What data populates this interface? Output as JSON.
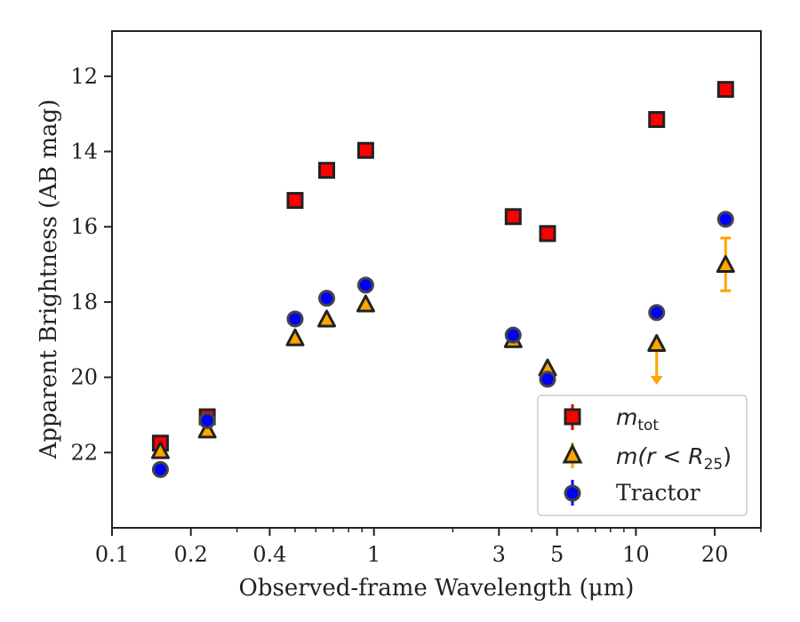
{
  "chart_data": {
    "type": "scatter",
    "xlabel": "Observed-frame Wavelength (μm)",
    "ylabel": "Apparent Brightness (AB mag)",
    "xscale": "log",
    "xlim": [
      0.1,
      30
    ],
    "ylim": [
      24,
      10.8
    ],
    "y_inverted": true,
    "x_ticks": [
      {
        "value": 0.1,
        "label": "0.1"
      },
      {
        "value": 0.2,
        "label": "0.2"
      },
      {
        "value": 0.4,
        "label": "0.4"
      },
      {
        "value": 1,
        "label": "1"
      },
      {
        "value": 3,
        "label": "3"
      },
      {
        "value": 5,
        "label": "5"
      },
      {
        "value": 10,
        "label": "10"
      },
      {
        "value": 20,
        "label": "20"
      }
    ],
    "y_ticks": [
      {
        "value": 12,
        "label": "12"
      },
      {
        "value": 14,
        "label": "14"
      },
      {
        "value": 16,
        "label": "16"
      },
      {
        "value": 18,
        "label": "18"
      },
      {
        "value": 20,
        "label": "20"
      },
      {
        "value": 22,
        "label": "22"
      }
    ],
    "grid": false,
    "legend_position": "bottom-right",
    "series": [
      {
        "name": "m_tot",
        "marker": "square",
        "color": "#ff0000",
        "edge": "#222222",
        "points": [
          {
            "x": 0.153,
            "y": 21.75
          },
          {
            "x": 0.231,
            "y": 21.05
          },
          {
            "x": 0.5,
            "y": 15.3
          },
          {
            "x": 0.66,
            "y": 14.5
          },
          {
            "x": 0.93,
            "y": 13.97
          },
          {
            "x": 3.4,
            "y": 15.73
          },
          {
            "x": 4.6,
            "y": 16.18
          },
          {
            "x": 12.0,
            "y": 13.15
          },
          {
            "x": 22.0,
            "y": 12.35
          }
        ]
      },
      {
        "name": "m(r < R_25)",
        "marker": "triangle",
        "color": "#ffa500",
        "edge": "#222222",
        "points": [
          {
            "x": 0.153,
            "y": 21.95
          },
          {
            "x": 0.231,
            "y": 21.4
          },
          {
            "x": 0.5,
            "y": 18.95
          },
          {
            "x": 0.66,
            "y": 18.45
          },
          {
            "x": 0.93,
            "y": 18.05
          },
          {
            "x": 3.4,
            "y": 19.0
          },
          {
            "x": 4.6,
            "y": 19.75
          },
          {
            "x": 12.0,
            "y": 19.1,
            "upper_limit_to": 20.15
          },
          {
            "x": 22.0,
            "y": 17.0,
            "err_low": 16.3,
            "err_high": 17.7
          }
        ]
      },
      {
        "name": "Tractor",
        "marker": "circle",
        "color": "#0000ff",
        "edge": "#444444",
        "points": [
          {
            "x": 0.153,
            "y": 22.45
          },
          {
            "x": 0.231,
            "y": 21.15
          },
          {
            "x": 0.5,
            "y": 18.45
          },
          {
            "x": 0.66,
            "y": 17.9
          },
          {
            "x": 0.93,
            "y": 17.55
          },
          {
            "x": 3.4,
            "y": 18.88
          },
          {
            "x": 4.6,
            "y": 20.05
          },
          {
            "x": 12.0,
            "y": 18.28
          },
          {
            "x": 22.0,
            "y": 15.8
          }
        ]
      }
    ],
    "legend": [
      {
        "base": "m",
        "sub": "tot",
        "paren": ""
      },
      {
        "base": "m",
        "sub": "25",
        "paren": "(r < R"
      },
      {
        "base": "Tractor",
        "sub": "",
        "paren": ""
      }
    ]
  }
}
